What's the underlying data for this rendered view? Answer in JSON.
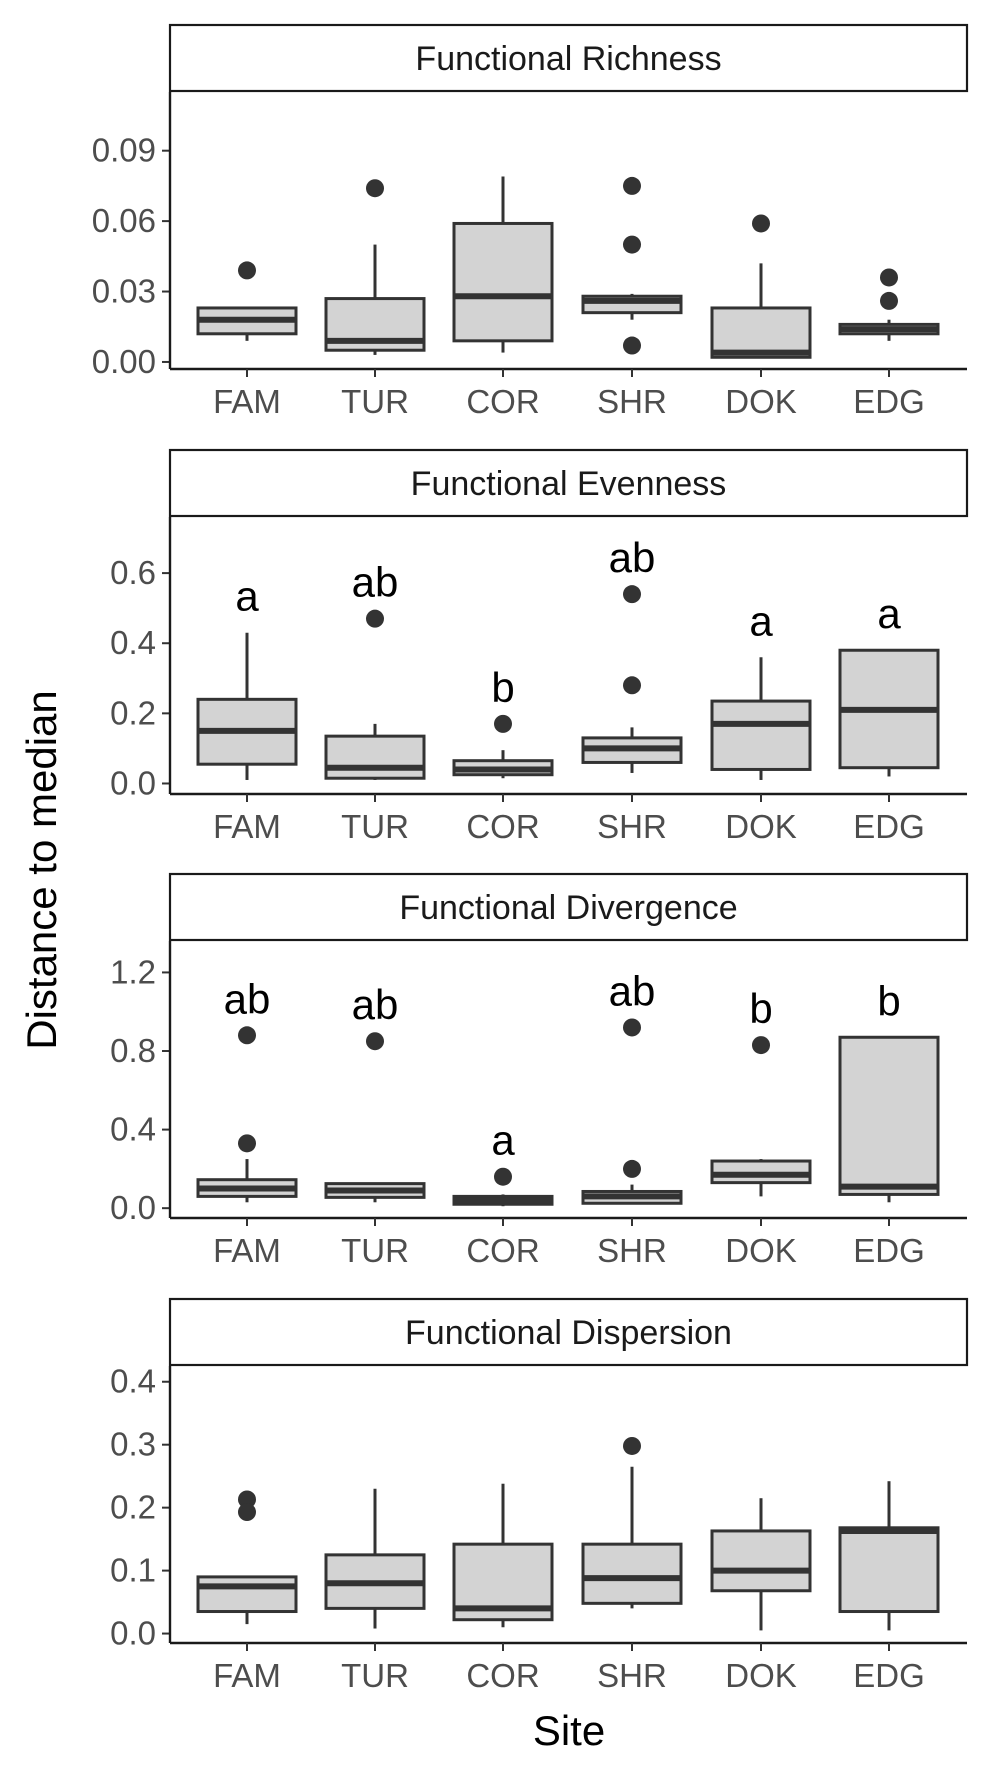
{
  "chart_data": [
    {
      "type": "box",
      "title": "Functional Richness",
      "categories": [
        "FAM",
        "TUR",
        "COR",
        "SHR",
        "DOK",
        "EDG"
      ],
      "ylim": [
        -0.003,
        0.115
      ],
      "yticks": [
        "0.00",
        "0.03",
        "0.06",
        "0.09"
      ],
      "boxes": [
        {
          "min": 0.009,
          "q1": 0.012,
          "median": 0.018,
          "q3": 0.023,
          "max": 0.023,
          "outliers": [
            0.039
          ]
        },
        {
          "min": 0.003,
          "q1": 0.005,
          "median": 0.009,
          "q3": 0.027,
          "max": 0.05,
          "outliers": [
            0.074
          ]
        },
        {
          "min": 0.004,
          "q1": 0.009,
          "median": 0.028,
          "q3": 0.059,
          "max": 0.079,
          "outliers": []
        },
        {
          "min": 0.018,
          "q1": 0.021,
          "median": 0.026,
          "q3": 0.028,
          "max": 0.029,
          "outliers": [
            0.075,
            0.05,
            0.007
          ]
        },
        {
          "min": 0.002,
          "q1": 0.002,
          "median": 0.004,
          "q3": 0.023,
          "max": 0.042,
          "outliers": [
            0.059
          ]
        },
        {
          "min": 0.009,
          "q1": 0.012,
          "median": 0.014,
          "q3": 0.016,
          "max": 0.018,
          "outliers": [
            0.036,
            0.026
          ]
        }
      ],
      "letters": [
        "",
        "",
        "",
        "",
        "",
        ""
      ]
    },
    {
      "type": "box",
      "title": "Functional Evenness",
      "categories": [
        "FAM",
        "TUR",
        "COR",
        "SHR",
        "DOK",
        "EDG"
      ],
      "ylim": [
        -0.03,
        0.76
      ],
      "yticks": [
        "0.0",
        "0.2",
        "0.4",
        "0.6"
      ],
      "boxes": [
        {
          "min": 0.01,
          "q1": 0.055,
          "median": 0.15,
          "q3": 0.24,
          "max": 0.43,
          "outliers": []
        },
        {
          "min": 0.01,
          "q1": 0.015,
          "median": 0.045,
          "q3": 0.135,
          "max": 0.17,
          "outliers": [
            0.47
          ]
        },
        {
          "min": 0.015,
          "q1": 0.025,
          "median": 0.04,
          "q3": 0.065,
          "max": 0.095,
          "outliers": [
            0.17
          ]
        },
        {
          "min": 0.03,
          "q1": 0.06,
          "median": 0.1,
          "q3": 0.13,
          "max": 0.16,
          "outliers": [
            0.54,
            0.28
          ]
        },
        {
          "min": 0.01,
          "q1": 0.04,
          "median": 0.17,
          "q3": 0.235,
          "max": 0.36,
          "outliers": []
        },
        {
          "min": 0.02,
          "q1": 0.045,
          "median": 0.21,
          "q3": 0.38,
          "max": 0.38,
          "outliers": []
        }
      ],
      "letters": [
        "a",
        "ab",
        "b",
        "ab",
        "a",
        "a"
      ]
    },
    {
      "type": "box",
      "title": "Functional Divergence",
      "categories": [
        "FAM",
        "TUR",
        "COR",
        "SHR",
        "DOK",
        "EDG"
      ],
      "ylim": [
        -0.05,
        1.36
      ],
      "yticks": [
        "0.0",
        "0.4",
        "0.8",
        "1.2"
      ],
      "boxes": [
        {
          "min": 0.03,
          "q1": 0.06,
          "median": 0.1,
          "q3": 0.145,
          "max": 0.25,
          "outliers": [
            0.88,
            0.33
          ]
        },
        {
          "min": 0.03,
          "q1": 0.055,
          "median": 0.09,
          "q3": 0.125,
          "max": 0.13,
          "outliers": [
            0.85
          ]
        },
        {
          "min": 0.01,
          "q1": 0.02,
          "median": 0.04,
          "q3": 0.06,
          "max": 0.07,
          "outliers": [
            0.16
          ]
        },
        {
          "min": 0.02,
          "q1": 0.025,
          "median": 0.06,
          "q3": 0.085,
          "max": 0.12,
          "outliers": [
            0.92,
            0.2
          ]
        },
        {
          "min": 0.06,
          "q1": 0.13,
          "median": 0.17,
          "q3": 0.24,
          "max": 0.25,
          "outliers": [
            0.83
          ]
        },
        {
          "min": 0.03,
          "q1": 0.07,
          "median": 0.11,
          "q3": 0.87,
          "max": 0.87,
          "outliers": []
        }
      ],
      "letters": [
        "ab",
        "ab",
        "a",
        "ab",
        "b",
        "b"
      ]
    },
    {
      "type": "box",
      "title": "Functional Dispersion",
      "categories": [
        "FAM",
        "TUR",
        "COR",
        "SHR",
        "DOK",
        "EDG"
      ],
      "ylim": [
        -0.015,
        0.425
      ],
      "yticks": [
        "0.0",
        "0.1",
        "0.2",
        "0.3",
        "0.4"
      ],
      "boxes": [
        {
          "min": 0.015,
          "q1": 0.035,
          "median": 0.075,
          "q3": 0.09,
          "max": 0.09,
          "outliers": [
            0.213,
            0.193
          ]
        },
        {
          "min": 0.008,
          "q1": 0.04,
          "median": 0.08,
          "q3": 0.125,
          "max": 0.23,
          "outliers": []
        },
        {
          "min": 0.01,
          "q1": 0.022,
          "median": 0.04,
          "q3": 0.142,
          "max": 0.238,
          "outliers": []
        },
        {
          "min": 0.04,
          "q1": 0.048,
          "median": 0.088,
          "q3": 0.142,
          "max": 0.265,
          "outliers": [
            0.298
          ]
        },
        {
          "min": 0.005,
          "q1": 0.068,
          "median": 0.1,
          "q3": 0.163,
          "max": 0.215,
          "outliers": []
        },
        {
          "min": 0.005,
          "q1": 0.035,
          "median": 0.163,
          "q3": 0.168,
          "max": 0.242,
          "outliers": []
        }
      ],
      "letters": [
        "",
        "",
        "",
        "",
        "",
        ""
      ]
    }
  ],
  "ylabel": "Distance to median",
  "xlabel": "Site"
}
